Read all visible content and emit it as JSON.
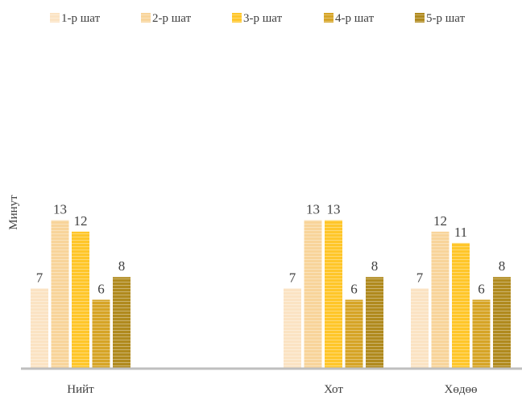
{
  "chart_data": {
    "type": "bar",
    "ylabel": "Минут",
    "categories": [
      "Нийт",
      "",
      "Хот",
      "Хөдөө"
    ],
    "series": [
      {
        "name": "1-р шат",
        "color": "#FBE3C3",
        "values": [
          7,
          null,
          7,
          7
        ]
      },
      {
        "name": "2-р шат",
        "color": "#F8D49A",
        "values": [
          13,
          null,
          13,
          12
        ]
      },
      {
        "name": "3-р шат",
        "color": "#FFC629",
        "values": [
          12,
          null,
          13,
          11
        ]
      },
      {
        "name": "4-р шат",
        "color": "#D6A426",
        "values": [
          6,
          null,
          6,
          6
        ]
      },
      {
        "name": "5-р шат",
        "color": "#B08A1E",
        "values": [
          8,
          null,
          8,
          8
        ]
      }
    ],
    "data_labels": true,
    "legend_position": "top",
    "grid": false,
    "bar_pattern": "horizontal-stripes",
    "axis_color": "#BFBFBF"
  }
}
